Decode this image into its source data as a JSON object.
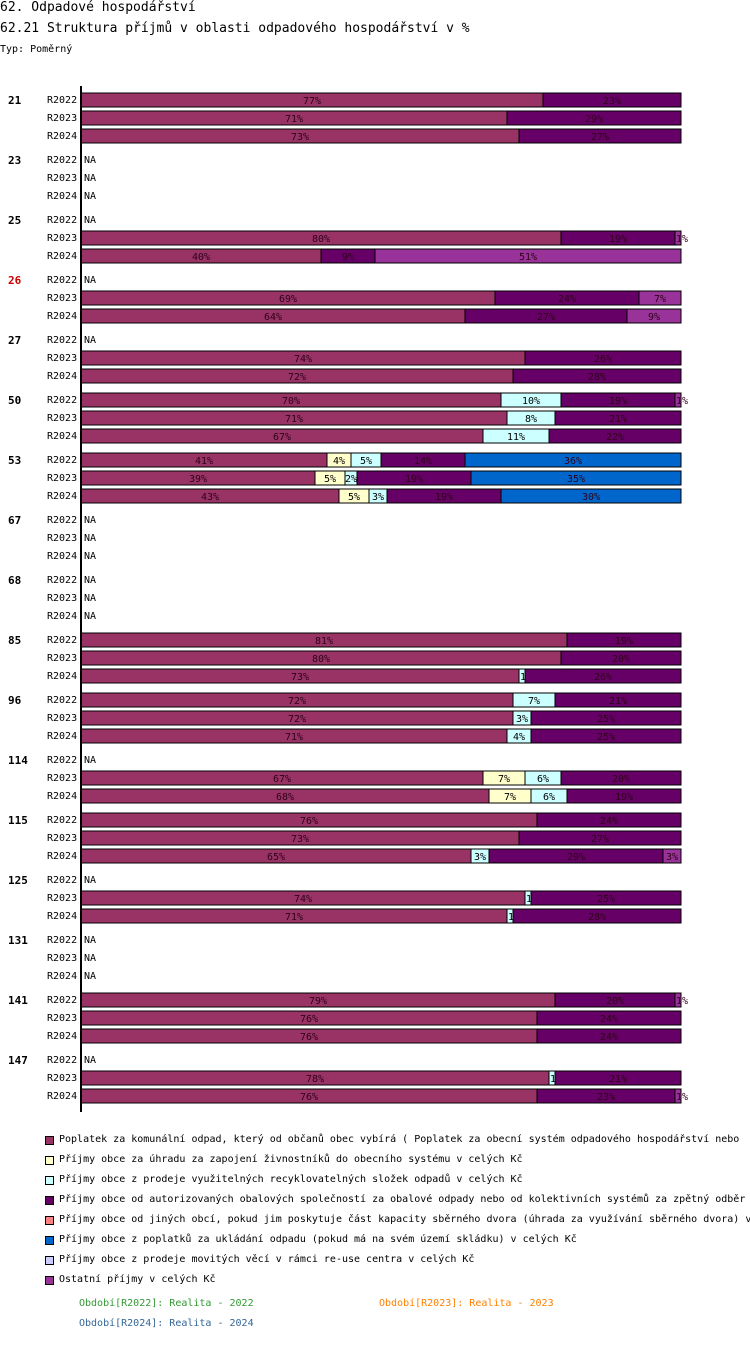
{
  "header": {
    "title": "62. Odpadové hospodářství",
    "subtitle": "62.21 Struktura příjmů v oblasti odpadového hospodářství v %",
    "type_label": "Typ: Poměrný"
  },
  "colors": {
    "c1": "#993366",
    "c2": "#ffffcc",
    "c3": "#ccffff",
    "c4": "#660066",
    "c5": "#ff8080",
    "c6": "#0066cc",
    "c7": "#ccccff",
    "c8": "#993399",
    "highlight_group": "#cc0000",
    "period_2022": "#339933",
    "period_2023": "#ff8000",
    "period_2024": "#336699"
  },
  "chart_data": {
    "type": "bar",
    "orientation": "horizontal",
    "stacked": "percent",
    "title": "62.21 Struktura příjmů v oblasti odpadového hospodářství v %",
    "na_label": "NA",
    "highlight_group": "26",
    "series": [
      {
        "key": "c1",
        "name": "Poplatek za komunální odpad, který od občanů obec vybírá ( Poplatek za obecní systém odpadového hospodářství  nebo"
      },
      {
        "key": "c2",
        "name": "Příjmy obce za úhradu za zapojení živnostníků do obecního systému v celých Kč"
      },
      {
        "key": "c3",
        "name": "Příjmy obce z prodeje využitelných recyklovatelných složek odpadů v celých Kč"
      },
      {
        "key": "c4",
        "name": "Příjmy obce od autorizovaných obalových společností za obalové odpady nebo od kolektivních systémů za zpětný odběr"
      },
      {
        "key": "c5",
        "name": "Příjmy obce od jiných obcí, pokud jim poskytuje část kapacity sběrného dvora (úhrada za využívání sběrného dvora) v"
      },
      {
        "key": "c6",
        "name": "Příjmy obce z poplatků za ukládání odpadu (pokud má na svém území skládku) v celých Kč"
      },
      {
        "key": "c7",
        "name": "Příjmy obce z prodeje movitých věcí v rámci re-use centra v celých Kč"
      },
      {
        "key": "c8",
        "name": "Ostatní příjmy v celých Kč"
      }
    ],
    "groups": [
      {
        "label": "21",
        "rows": [
          {
            "period": "R2022",
            "segments": [
              {
                "s": "c1",
                "v": 77,
                "label": "77%"
              },
              {
                "s": "c4",
                "v": 23,
                "label": "23%"
              }
            ]
          },
          {
            "period": "R2023",
            "segments": [
              {
                "s": "c1",
                "v": 71,
                "label": "71%"
              },
              {
                "s": "c4",
                "v": 29,
                "label": "29%"
              }
            ]
          },
          {
            "period": "R2024",
            "segments": [
              {
                "s": "c1",
                "v": 73,
                "label": "73%"
              },
              {
                "s": "c4",
                "v": 27,
                "label": "27%"
              }
            ]
          }
        ]
      },
      {
        "label": "23",
        "rows": [
          {
            "period": "R2022",
            "segments": null
          },
          {
            "period": "R2023",
            "segments": null
          },
          {
            "period": "R2024",
            "segments": null
          }
        ]
      },
      {
        "label": "25",
        "rows": [
          {
            "period": "R2022",
            "segments": null
          },
          {
            "period": "R2023",
            "segments": [
              {
                "s": "c1",
                "v": 80,
                "label": "80%"
              },
              {
                "s": "c4",
                "v": 19,
                "label": "19%"
              },
              {
                "s": "c8",
                "v": 1,
                "label": "1%"
              }
            ]
          },
          {
            "period": "R2024",
            "segments": [
              {
                "s": "c1",
                "v": 40,
                "label": "40%"
              },
              {
                "s": "c4",
                "v": 9,
                "label": "9%"
              },
              {
                "s": "c8",
                "v": 51,
                "label": "51%"
              }
            ]
          }
        ]
      },
      {
        "label": "26",
        "rows": [
          {
            "period": "R2022",
            "segments": null
          },
          {
            "period": "R2023",
            "segments": [
              {
                "s": "c1",
                "v": 69,
                "label": "69%"
              },
              {
                "s": "c4",
                "v": 24,
                "label": "24%"
              },
              {
                "s": "c8",
                "v": 7,
                "label": "7%"
              }
            ]
          },
          {
            "period": "R2024",
            "segments": [
              {
                "s": "c1",
                "v": 64,
                "label": "64%"
              },
              {
                "s": "c4",
                "v": 27,
                "label": "27%"
              },
              {
                "s": "c8",
                "v": 9,
                "label": "9%"
              }
            ]
          }
        ]
      },
      {
        "label": "27",
        "rows": [
          {
            "period": "R2022",
            "segments": null
          },
          {
            "period": "R2023",
            "segments": [
              {
                "s": "c1",
                "v": 74,
                "label": "74%"
              },
              {
                "s": "c4",
                "v": 26,
                "label": "26%"
              }
            ]
          },
          {
            "period": "R2024",
            "segments": [
              {
                "s": "c1",
                "v": 72,
                "label": "72%"
              },
              {
                "s": "c4",
                "v": 28,
                "label": "28%"
              }
            ]
          }
        ]
      },
      {
        "label": "50",
        "rows": [
          {
            "period": "R2022",
            "segments": [
              {
                "s": "c1",
                "v": 70,
                "label": "70%"
              },
              {
                "s": "c3",
                "v": 10,
                "label": "10%"
              },
              {
                "s": "c4",
                "v": 19,
                "label": "19%"
              },
              {
                "s": "c8",
                "v": 1,
                "label": "1%"
              }
            ]
          },
          {
            "period": "R2023",
            "segments": [
              {
                "s": "c1",
                "v": 71,
                "label": "71%"
              },
              {
                "s": "c3",
                "v": 8,
                "label": "8%"
              },
              {
                "s": "c4",
                "v": 21,
                "label": "21%"
              }
            ]
          },
          {
            "period": "R2024",
            "segments": [
              {
                "s": "c1",
                "v": 67,
                "label": "67%"
              },
              {
                "s": "c3",
                "v": 11,
                "label": "11%"
              },
              {
                "s": "c4",
                "v": 22,
                "label": "22%"
              }
            ]
          }
        ]
      },
      {
        "label": "53",
        "rows": [
          {
            "period": "R2022",
            "segments": [
              {
                "s": "c1",
                "v": 41,
                "label": "41%"
              },
              {
                "s": "c2",
                "v": 4,
                "label": "4%"
              },
              {
                "s": "c3",
                "v": 5,
                "label": "5%"
              },
              {
                "s": "c4",
                "v": 14,
                "label": "14%"
              },
              {
                "s": "c6",
                "v": 36,
                "label": "36%"
              }
            ]
          },
          {
            "period": "R2023",
            "segments": [
              {
                "s": "c1",
                "v": 39,
                "label": "39%"
              },
              {
                "s": "c2",
                "v": 5,
                "label": "5%"
              },
              {
                "s": "c3",
                "v": 2,
                "label": "2%"
              },
              {
                "s": "c4",
                "v": 19,
                "label": "19%"
              },
              {
                "s": "c6",
                "v": 35,
                "label": "35%"
              }
            ]
          },
          {
            "period": "R2024",
            "segments": [
              {
                "s": "c1",
                "v": 43,
                "label": "43%"
              },
              {
                "s": "c2",
                "v": 5,
                "label": "5%"
              },
              {
                "s": "c3",
                "v": 3,
                "label": "3%"
              },
              {
                "s": "c4",
                "v": 19,
                "label": "19%"
              },
              {
                "s": "c6",
                "v": 30,
                "label": "30%"
              }
            ]
          }
        ]
      },
      {
        "label": "67",
        "rows": [
          {
            "period": "R2022",
            "segments": null
          },
          {
            "period": "R2023",
            "segments": null
          },
          {
            "period": "R2024",
            "segments": null
          }
        ]
      },
      {
        "label": "68",
        "rows": [
          {
            "period": "R2022",
            "segments": null
          },
          {
            "period": "R2023",
            "segments": null
          },
          {
            "period": "R2024",
            "segments": null
          }
        ]
      },
      {
        "label": "85",
        "rows": [
          {
            "period": "R2022",
            "segments": [
              {
                "s": "c1",
                "v": 81,
                "label": "81%"
              },
              {
                "s": "c4",
                "v": 19,
                "label": "19%"
              }
            ]
          },
          {
            "period": "R2023",
            "segments": [
              {
                "s": "c1",
                "v": 80,
                "label": "80%"
              },
              {
                "s": "c4",
                "v": 20,
                "label": "20%"
              }
            ]
          },
          {
            "period": "R2024",
            "segments": [
              {
                "s": "c1",
                "v": 73,
                "label": "73%"
              },
              {
                "s": "c3",
                "v": 1,
                "label": "1%"
              },
              {
                "s": "c4",
                "v": 26,
                "label": "26%"
              }
            ]
          }
        ]
      },
      {
        "label": "96",
        "rows": [
          {
            "period": "R2022",
            "segments": [
              {
                "s": "c1",
                "v": 72,
                "label": "72%"
              },
              {
                "s": "c3",
                "v": 7,
                "label": "7%"
              },
              {
                "s": "c4",
                "v": 21,
                "label": "21%"
              }
            ]
          },
          {
            "period": "R2023",
            "segments": [
              {
                "s": "c1",
                "v": 72,
                "label": "72%"
              },
              {
                "s": "c3",
                "v": 3,
                "label": "3%"
              },
              {
                "s": "c4",
                "v": 25,
                "label": "25%"
              }
            ]
          },
          {
            "period": "R2024",
            "segments": [
              {
                "s": "c1",
                "v": 71,
                "label": "71%"
              },
              {
                "s": "c3",
                "v": 4,
                "label": "4%"
              },
              {
                "s": "c4",
                "v": 25,
                "label": "25%"
              }
            ]
          }
        ]
      },
      {
        "label": "114",
        "rows": [
          {
            "period": "R2022",
            "segments": null
          },
          {
            "period": "R2023",
            "segments": [
              {
                "s": "c1",
                "v": 67,
                "label": "67%"
              },
              {
                "s": "c2",
                "v": 7,
                "label": "7%"
              },
              {
                "s": "c3",
                "v": 6,
                "label": "6%"
              },
              {
                "s": "c4",
                "v": 20,
                "label": "20%"
              }
            ]
          },
          {
            "period": "R2024",
            "segments": [
              {
                "s": "c1",
                "v": 68,
                "label": "68%"
              },
              {
                "s": "c2",
                "v": 7,
                "label": "7%"
              },
              {
                "s": "c3",
                "v": 6,
                "label": "6%"
              },
              {
                "s": "c4",
                "v": 19,
                "label": "19%"
              }
            ]
          }
        ]
      },
      {
        "label": "115",
        "rows": [
          {
            "period": "R2022",
            "segments": [
              {
                "s": "c1",
                "v": 76,
                "label": "76%"
              },
              {
                "s": "c4",
                "v": 24,
                "label": "24%"
              }
            ]
          },
          {
            "period": "R2023",
            "segments": [
              {
                "s": "c1",
                "v": 73,
                "label": "73%"
              },
              {
                "s": "c4",
                "v": 27,
                "label": "27%"
              }
            ]
          },
          {
            "period": "R2024",
            "segments": [
              {
                "s": "c1",
                "v": 65,
                "label": "65%"
              },
              {
                "s": "c3",
                "v": 3,
                "label": "3%"
              },
              {
                "s": "c4",
                "v": 29,
                "label": "29%"
              },
              {
                "s": "c8",
                "v": 3,
                "label": "3%"
              }
            ]
          }
        ]
      },
      {
        "label": "125",
        "rows": [
          {
            "period": "R2022",
            "segments": null
          },
          {
            "period": "R2023",
            "segments": [
              {
                "s": "c1",
                "v": 74,
                "label": "74%"
              },
              {
                "s": "c3",
                "v": 1,
                "label": "1%"
              },
              {
                "s": "c4",
                "v": 25,
                "label": "25%"
              }
            ]
          },
          {
            "period": "R2024",
            "segments": [
              {
                "s": "c1",
                "v": 71,
                "label": "71%"
              },
              {
                "s": "c3",
                "v": 1,
                "label": "1%"
              },
              {
                "s": "c4",
                "v": 28,
                "label": "28%"
              }
            ]
          }
        ]
      },
      {
        "label": "131",
        "rows": [
          {
            "period": "R2022",
            "segments": null
          },
          {
            "period": "R2023",
            "segments": null
          },
          {
            "period": "R2024",
            "segments": null
          }
        ]
      },
      {
        "label": "141",
        "rows": [
          {
            "period": "R2022",
            "segments": [
              {
                "s": "c1",
                "v": 79,
                "label": "79%"
              },
              {
                "s": "c4",
                "v": 20,
                "label": "20%"
              },
              {
                "s": "c8",
                "v": 1,
                "label": "1%"
              }
            ]
          },
          {
            "period": "R2023",
            "segments": [
              {
                "s": "c1",
                "v": 76,
                "label": "76%"
              },
              {
                "s": "c4",
                "v": 24,
                "label": "24%"
              }
            ]
          },
          {
            "period": "R2024",
            "segments": [
              {
                "s": "c1",
                "v": 76,
                "label": "76%"
              },
              {
                "s": "c4",
                "v": 24,
                "label": "24%"
              }
            ]
          }
        ]
      },
      {
        "label": "147",
        "rows": [
          {
            "period": "R2022",
            "segments": null
          },
          {
            "period": "R2023",
            "segments": [
              {
                "s": "c1",
                "v": 78,
                "label": "78%"
              },
              {
                "s": "c3",
                "v": 1,
                "label": "1%"
              },
              {
                "s": "c4",
                "v": 21,
                "label": "21%"
              }
            ]
          },
          {
            "period": "R2024",
            "segments": [
              {
                "s": "c1",
                "v": 76,
                "label": "76%"
              },
              {
                "s": "c4",
                "v": 23,
                "label": "23%"
              },
              {
                "s": "c8",
                "v": 1,
                "label": "1%"
              }
            ]
          }
        ]
      }
    ]
  },
  "periods": {
    "p2022": "Období[R2022]: Realita - 2022",
    "p2023": "Období[R2023]: Realita - 2023",
    "p2024": "Období[R2024]: Realita - 2024"
  }
}
